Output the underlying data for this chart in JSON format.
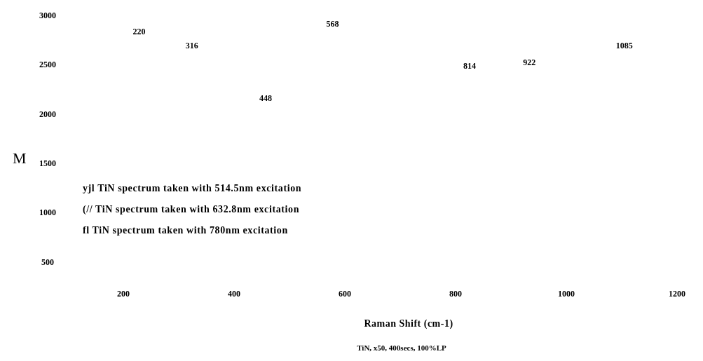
{
  "chart_data": {
    "type": "line",
    "xlabel": "Raman Shift (cm-1)",
    "ylabel": "M",
    "xlim": [
      200,
      1200
    ],
    "xticks": [
      200,
      400,
      600,
      800,
      1000,
      1200
    ],
    "ylim": [
      500,
      3000
    ],
    "yticks": [
      500,
      1000,
      1500,
      2000,
      2500,
      3000
    ],
    "annotations": [
      "220",
      "316",
      "448",
      "568",
      "814",
      "922",
      "1085",
      "yjl  TiN spectrum taken with 514.5nm excitation",
      "(//  TiN spectrum taken with 632.8nm excitation",
      "fl  TiN spectrum taken with 780nm excitation",
      "TiN, x50, 400secs, 100%LP"
    ]
  }
}
